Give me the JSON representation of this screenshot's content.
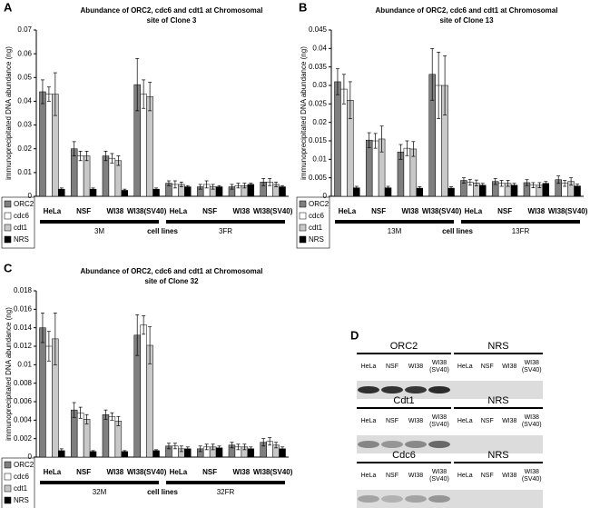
{
  "chart_data": [
    {
      "panel": "A",
      "type": "bar",
      "title_lines": [
        "Abundance of ORC2, cdc6 and cdt1 at Chromosomal",
        "site of Clone 3"
      ],
      "ylabel": "immunoprecipitated DNA abundance (ng)",
      "xlabel": "cell lines",
      "categories": [
        "HeLa",
        "NSF",
        "WI38",
        "WI38(SV40)",
        "HeLa",
        "NSF",
        "WI38",
        "WI38(SV40)"
      ],
      "group_labels": [
        "3M",
        "3FR"
      ],
      "ylim": [
        0,
        0.07
      ],
      "yticks": [
        0,
        0.01,
        0.02,
        0.03,
        0.04,
        0.05,
        0.06,
        0.07
      ],
      "series": [
        {
          "name": "ORC2",
          "color": "#7f7f7f",
          "values": [
            0.044,
            0.02,
            0.017,
            0.047,
            0.0055,
            0.004,
            0.004,
            0.006
          ],
          "errors": [
            0.005,
            0.003,
            0.002,
            0.011,
            0.001,
            0.001,
            0.001,
            0.0015
          ]
        },
        {
          "name": "cdc6",
          "color": "#ffffff",
          "values": [
            0.043,
            0.017,
            0.016,
            0.043,
            0.005,
            0.005,
            0.0045,
            0.006
          ],
          "errors": [
            0.003,
            0.002,
            0.002,
            0.006,
            0.0015,
            0.0015,
            0.001,
            0.0015
          ]
        },
        {
          "name": "cdt1",
          "color": "#c8c8c8",
          "values": [
            0.043,
            0.017,
            0.015,
            0.042,
            0.005,
            0.004,
            0.0045,
            0.005
          ],
          "errors": [
            0.009,
            0.002,
            0.002,
            0.006,
            0.001,
            0.001,
            0.001,
            0.001
          ]
        },
        {
          "name": "NRS",
          "color": "#000000",
          "values": [
            0.003,
            0.003,
            0.0025,
            0.003,
            0.004,
            0.004,
            0.005,
            0.004
          ],
          "errors": [
            0.0005,
            0.0005,
            0.0005,
            0.0005,
            0.0005,
            0.0005,
            0.0005,
            0.0005
          ]
        }
      ]
    },
    {
      "panel": "B",
      "type": "bar",
      "title_lines": [
        "Abundance of ORC2, cdc6 and cdt1 at Chromosomal",
        "site of Clone 13"
      ],
      "ylabel": "immunoprecipitated DNA abundance (ng)",
      "xlabel": "cell lines",
      "categories": [
        "HeLa",
        "NSF",
        "WI38",
        "WI38(SV40)",
        "HeLa",
        "NSF",
        "WI38",
        "WI38(SV40)"
      ],
      "group_labels": [
        "13M",
        "13FR"
      ],
      "ylim": [
        0,
        0.045
      ],
      "yticks": [
        0,
        0.005,
        0.01,
        0.015,
        0.02,
        0.025,
        0.03,
        0.035,
        0.04,
        0.045
      ],
      "series": [
        {
          "name": "ORC2",
          "color": "#7f7f7f",
          "values": [
            0.031,
            0.0152,
            0.012,
            0.033,
            0.0043,
            0.004,
            0.0037,
            0.0045
          ],
          "errors": [
            0.0035,
            0.002,
            0.002,
            0.007,
            0.0007,
            0.0008,
            0.0008,
            0.001
          ]
        },
        {
          "name": "cdc6",
          "color": "#ffffff",
          "values": [
            0.029,
            0.015,
            0.013,
            0.03,
            0.0038,
            0.0035,
            0.003,
            0.0035
          ],
          "errors": [
            0.004,
            0.002,
            0.002,
            0.009,
            0.0008,
            0.0008,
            0.0007,
            0.0008
          ]
        },
        {
          "name": "cdt1",
          "color": "#c8c8c8",
          "values": [
            0.026,
            0.0155,
            0.0128,
            0.03,
            0.0036,
            0.0035,
            0.003,
            0.004
          ],
          "errors": [
            0.005,
            0.0035,
            0.002,
            0.008,
            0.0008,
            0.0008,
            0.0007,
            0.001
          ]
        },
        {
          "name": "NRS",
          "color": "#000000",
          "values": [
            0.0023,
            0.0023,
            0.0022,
            0.0022,
            0.003,
            0.003,
            0.0035,
            0.0028
          ],
          "errors": [
            0.0004,
            0.0004,
            0.0004,
            0.0004,
            0.0005,
            0.0005,
            0.0005,
            0.0005
          ]
        }
      ]
    },
    {
      "panel": "C",
      "type": "bar",
      "title_lines": [
        "Abundance of ORC2, cdc6 and cdt1 at Chromosomal",
        "site of Clone 32"
      ],
      "ylabel": "immunoprecipitated DNA abundance (ng)",
      "xlabel": "cell lines",
      "categories": [
        "HeLa",
        "NSF",
        "WI38",
        "WI38(SV40)",
        "HeLa",
        "NSF",
        "WI38",
        "WI38(SV40)"
      ],
      "group_labels": [
        "32M",
        "32FR"
      ],
      "ylim": [
        0,
        0.018
      ],
      "yticks": [
        0,
        0.002,
        0.004,
        0.006,
        0.008,
        0.01,
        0.012,
        0.014,
        0.016,
        0.018
      ],
      "series": [
        {
          "name": "ORC2",
          "color": "#7f7f7f",
          "values": [
            0.014,
            0.0051,
            0.0046,
            0.0132,
            0.0012,
            0.0009,
            0.0013,
            0.0016
          ],
          "errors": [
            0.0016,
            0.0008,
            0.0005,
            0.0022,
            0.0003,
            0.0003,
            0.0003,
            0.0004
          ]
        },
        {
          "name": "cdc6",
          "color": "#ffffff",
          "values": [
            0.012,
            0.0048,
            0.0044,
            0.0143,
            0.0012,
            0.0011,
            0.0011,
            0.0017
          ],
          "errors": [
            0.0016,
            0.0006,
            0.0004,
            0.001,
            0.0003,
            0.0003,
            0.0003,
            0.0004
          ]
        },
        {
          "name": "cdt1",
          "color": "#c8c8c8",
          "values": [
            0.0128,
            0.0041,
            0.0039,
            0.0121,
            0.0009,
            0.0011,
            0.0011,
            0.0013
          ],
          "errors": [
            0.0028,
            0.0005,
            0.0005,
            0.002,
            0.0003,
            0.0003,
            0.0003,
            0.0003
          ]
        },
        {
          "name": "NRS",
          "color": "#000000",
          "values": [
            0.0007,
            0.0006,
            0.0006,
            0.0007,
            0.0009,
            0.001,
            0.0009,
            0.0009
          ],
          "errors": [
            0.0002,
            0.0001,
            0.0001,
            0.0001,
            0.0002,
            0.0002,
            0.0002,
            0.0002
          ]
        }
      ]
    }
  ],
  "blot": {
    "panel": "D",
    "blocks": [
      {
        "left": "ORC2",
        "right": "NRS",
        "lanes": [
          [
            "HeLa"
          ],
          [
            "NSF"
          ],
          [
            "WI38"
          ],
          [
            "WI38",
            "(SV40)"
          ]
        ]
      },
      {
        "left": "Cdt1",
        "right": "NRS",
        "lanes": [
          [
            "HeLa"
          ],
          [
            "NSF"
          ],
          [
            "WI38"
          ],
          [
            "WI38",
            "(SV40)"
          ]
        ]
      },
      {
        "left": "Cdc6",
        "right": "NRS",
        "lanes": [
          [
            "HeLa"
          ],
          [
            "NSF"
          ],
          [
            "WI38"
          ],
          [
            "WI38",
            "(SV40)"
          ]
        ]
      }
    ]
  }
}
